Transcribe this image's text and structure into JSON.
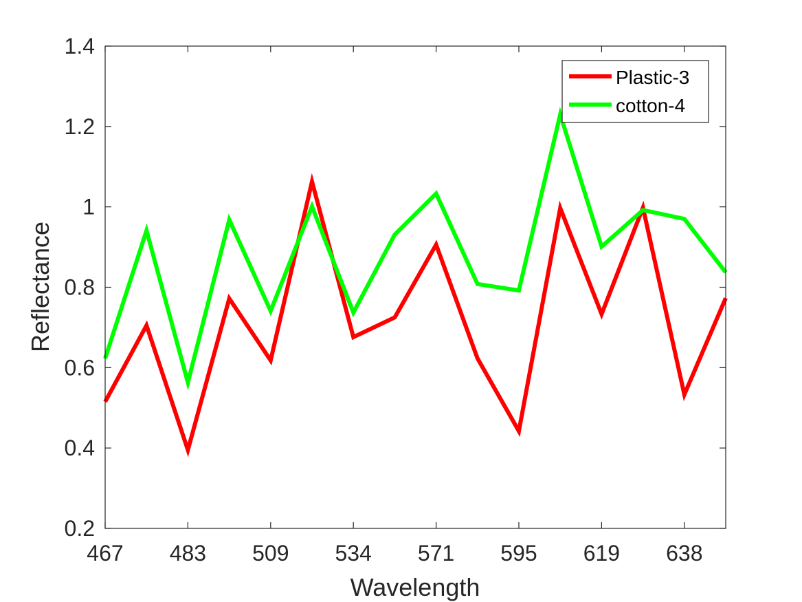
{
  "chart_data": {
    "type": "line",
    "title": "",
    "xlabel": "Wavelength",
    "ylabel": "Reflectance",
    "xlim": [
      1,
      16
    ],
    "ylim": [
      0.2,
      1.4
    ],
    "x_ticks": [
      {
        "pos": 1,
        "label": "467"
      },
      {
        "pos": 3,
        "label": "483"
      },
      {
        "pos": 5,
        "label": "509"
      },
      {
        "pos": 7,
        "label": "534"
      },
      {
        "pos": 9,
        "label": "571"
      },
      {
        "pos": 11,
        "label": "595"
      },
      {
        "pos": 13,
        "label": "619"
      },
      {
        "pos": 15,
        "label": "638"
      }
    ],
    "y_ticks": [
      {
        "value": 0.2,
        "label": "0.2"
      },
      {
        "value": 0.4,
        "label": "0.4"
      },
      {
        "value": 0.6,
        "label": "0.6"
      },
      {
        "value": 0.8,
        "label": "0.8"
      },
      {
        "value": 1.0,
        "label": "1"
      },
      {
        "value": 1.2,
        "label": "1.2"
      },
      {
        "value": 1.4,
        "label": "1.4"
      }
    ],
    "x": [
      1,
      2,
      3,
      4,
      5,
      6,
      7,
      8,
      9,
      10,
      11,
      12,
      13,
      14,
      15,
      16
    ],
    "series": [
      {
        "name": "Plastic-3",
        "color": "#ff0000",
        "values": [
          0.515,
          0.705,
          0.395,
          0.772,
          0.618,
          1.063,
          0.676,
          0.725,
          0.906,
          0.623,
          0.442,
          0.997,
          0.733,
          0.998,
          0.533,
          0.773
        ]
      },
      {
        "name": "cotton-4",
        "color": "#00ff00",
        "values": [
          0.623,
          0.941,
          0.563,
          0.968,
          0.741,
          1.001,
          0.737,
          0.931,
          1.033,
          0.808,
          0.792,
          1.23,
          0.901,
          0.992,
          0.97,
          0.837
        ]
      }
    ],
    "grid": false,
    "legend_position": "top-right"
  }
}
